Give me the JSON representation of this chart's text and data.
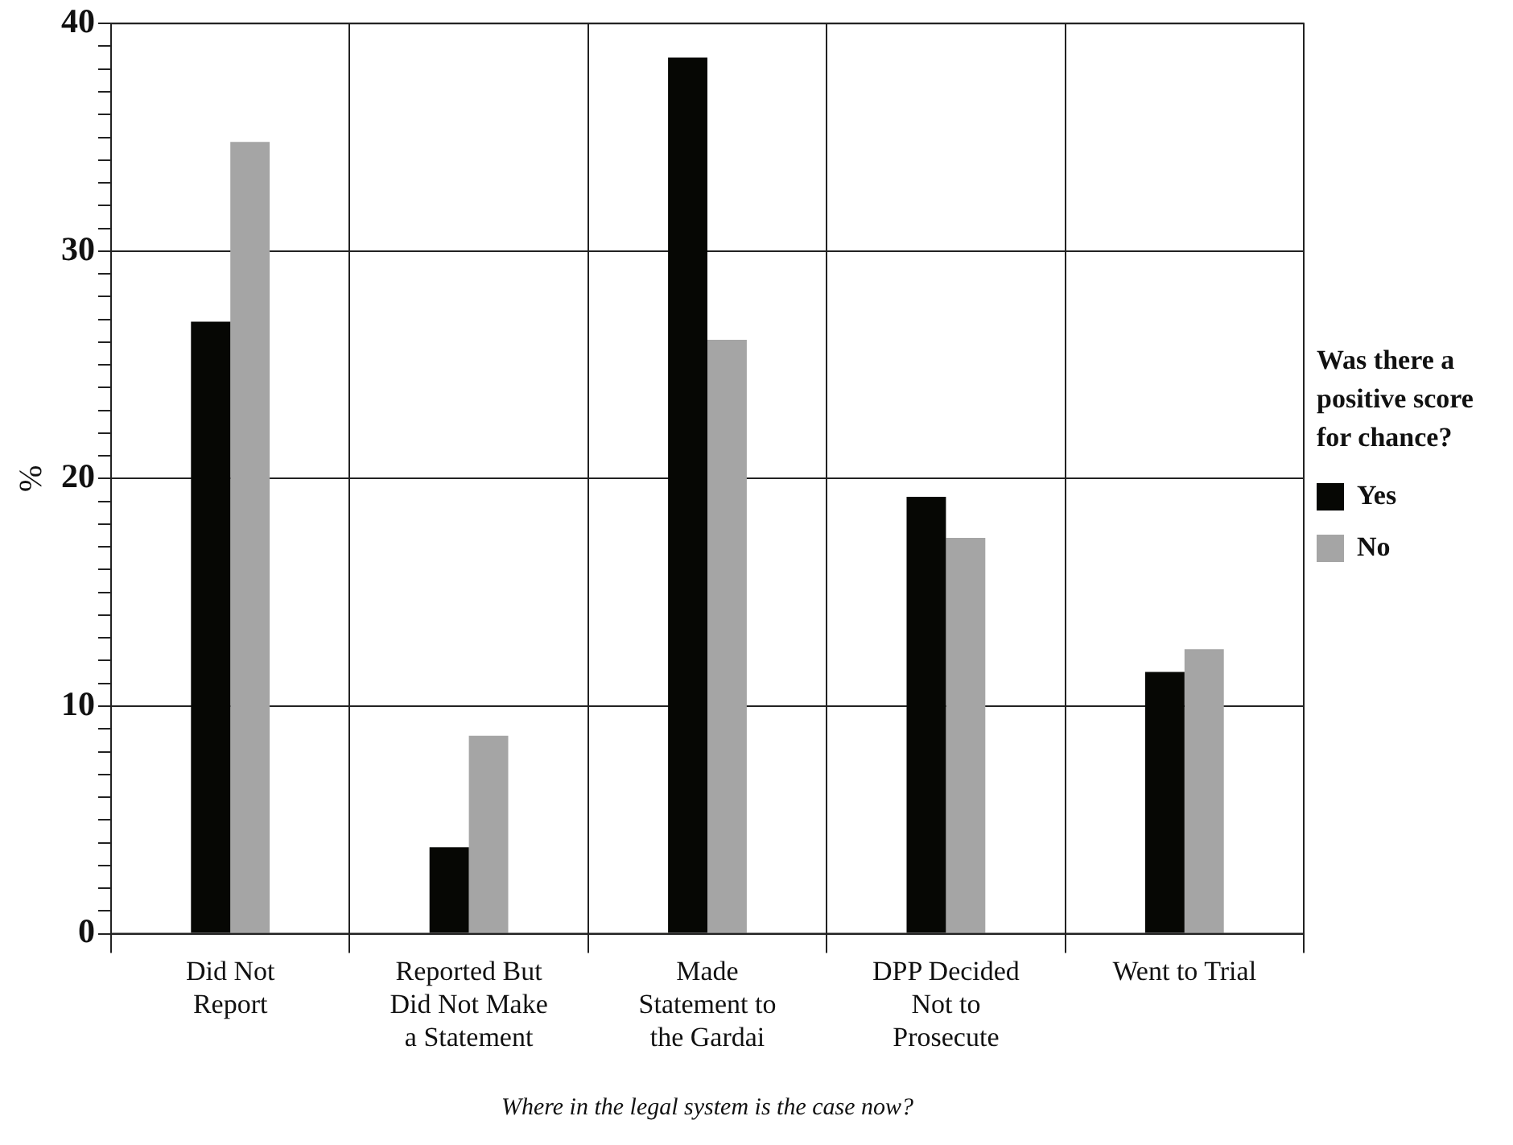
{
  "chart_data": {
    "type": "bar",
    "categories": [
      "Did Not Report",
      "Reported But Did Not Make a Statement",
      "Made Statement to the Gardai",
      "DPP Decided Not to Prosecute",
      "Went to Trial"
    ],
    "series": [
      {
        "name": "Yes",
        "color": "#060704",
        "values": [
          26.9,
          3.8,
          38.5,
          19.2,
          11.5
        ]
      },
      {
        "name": "No",
        "color": "#a5a5a5",
        "values": [
          34.8,
          8.7,
          26.1,
          17.4,
          12.5
        ]
      }
    ],
    "xlabel": "Where in the legal system is the case now?",
    "ylabel": "%",
    "legend_title": "Was there a positive score for chance?",
    "legend": "right",
    "ylim": [
      0,
      40
    ],
    "yticks": [
      0,
      {
        "value": 1,
        "label": null
      },
      {
        "value": 2,
        "label": null
      },
      {
        "value": 3,
        "label": null
      },
      {
        "value": 4,
        "label": null
      },
      {
        "value": 5,
        "label": null
      },
      {
        "value": 6,
        "label": null
      },
      {
        "value": 7,
        "label": null
      },
      {
        "value": 8,
        "label": null
      },
      {
        "value": 9,
        "label": null
      },
      10,
      {
        "value": 11,
        "label": null
      },
      {
        "value": 12,
        "label": null
      },
      {
        "value": 13,
        "label": null
      },
      {
        "value": 14,
        "label": null
      },
      {
        "value": 15,
        "label": null
      },
      {
        "value": 16,
        "label": null
      },
      {
        "value": 17,
        "label": null
      },
      {
        "value": 18,
        "label": null
      },
      {
        "value": 19,
        "label": null
      },
      20,
      {
        "value": 21,
        "label": null
      },
      {
        "value": 22,
        "label": null
      },
      {
        "value": 23,
        "label": null
      },
      {
        "value": 24,
        "label": null
      },
      {
        "value": 25,
        "label": null
      },
      {
        "value": 26,
        "label": null
      },
      {
        "value": 27,
        "label": null
      },
      {
        "value": 28,
        "label": null
      },
      {
        "value": 29,
        "label": null
      },
      30,
      {
        "value": 31,
        "label": null
      },
      {
        "value": 32,
        "label": null
      },
      {
        "value": 33,
        "label": null
      },
      {
        "value": 34,
        "label": null
      },
      {
        "value": 35,
        "label": null
      },
      {
        "value": 36,
        "label": null
      },
      {
        "value": 37,
        "label": null
      },
      {
        "value": 38,
        "label": null
      },
      {
        "value": 39,
        "label": null
      },
      40
    ],
    "grid": true
  }
}
